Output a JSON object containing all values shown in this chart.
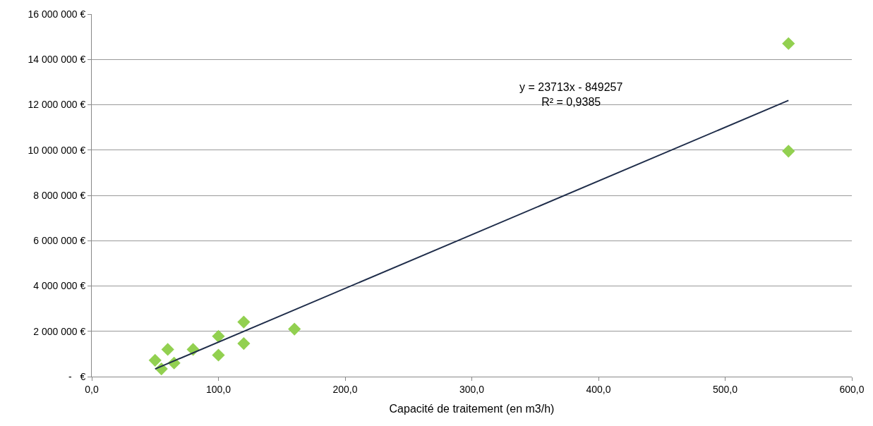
{
  "chart_data": {
    "type": "scatter",
    "xlabel": "Capacité de traitement (en m3/h)",
    "xlim": [
      0,
      600
    ],
    "xticks": [
      {
        "value": 0,
        "label": "0,0"
      },
      {
        "value": 100,
        "label": "100,0"
      },
      {
        "value": 200,
        "label": "200,0"
      },
      {
        "value": 300,
        "label": "300,0"
      },
      {
        "value": 400,
        "label": "400,0"
      },
      {
        "value": 500,
        "label": "500,0"
      },
      {
        "value": 600,
        "label": "600,0"
      }
    ],
    "ylim": [
      0,
      16000000
    ],
    "yticks": [
      {
        "value": 0,
        "label": "-   €"
      },
      {
        "value": 2000000,
        "label": "2 000 000 €"
      },
      {
        "value": 4000000,
        "label": "4 000 000 €"
      },
      {
        "value": 6000000,
        "label": "6 000 000 €"
      },
      {
        "value": 8000000,
        "label": "8 000 000 €"
      },
      {
        "value": 10000000,
        "label": "10 000 000 €"
      },
      {
        "value": 12000000,
        "label": "12 000 000 €"
      },
      {
        "value": 14000000,
        "label": "14 000 000 €"
      },
      {
        "value": 16000000,
        "label": "16 000 000 €"
      }
    ],
    "grid": "y",
    "marker": "diamond",
    "series": [
      {
        "color": "#92d050",
        "x": [
          50,
          55,
          60,
          65,
          80,
          100,
          100,
          120,
          120,
          160,
          550,
          550
        ],
        "values": [
          720000,
          340000,
          1200000,
          600000,
          1200000,
          1780000,
          950000,
          2410000,
          1460000,
          2100000,
          14700000,
          9950000
        ]
      },
      {
        "type": "line",
        "color": "#1f2d4a",
        "marker": "none",
        "x": [
          50,
          550
        ],
        "values": [
          340000,
          12190000
        ]
      }
    ],
    "annotations": [
      "y = 23713x - 849257\nR² = 0,9385"
    ]
  }
}
